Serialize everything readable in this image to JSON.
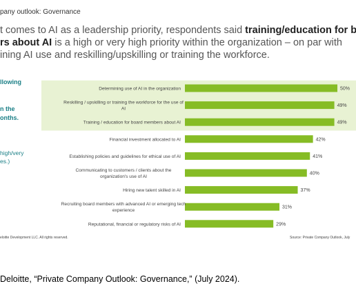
{
  "slide": {
    "breadcrumb": "pany outlook: Governance",
    "headline": {
      "line1_plain": "t comes to AI as a leadership priority, respondents said ",
      "line1_bold": "training/education for bo",
      "line2_bold": "rs about AI",
      "line2_plain": " is a high or very high priority within the organization – on par with",
      "line3": "ining AI use and reskilling/upskilling or training the workforce."
    },
    "side_text": [
      "llowing",
      "n the",
      "onths.",
      "high/very",
      "es.)"
    ],
    "footer_left": "eloitte Development LLC. All rights reserved.",
    "footer_right": "Source: Private Company Outlook, July"
  },
  "citation": "Deloitte, “Private Company Outlook: Governance,” (July 2024).",
  "colors": {
    "bar": "#86bc25",
    "highlight": "#e8f2d3",
    "teal": "#1a7f86",
    "label": "#444444"
  },
  "chart_data": {
    "type": "bar",
    "orientation": "horizontal",
    "categories": [
      [
        "Determining use of AI in the organization"
      ],
      [
        "Reskilling / upskilling or training the workforce for the use of",
        "AI"
      ],
      [
        "Training / education for board members about AI"
      ],
      [
        "Financial investment allocated to AI"
      ],
      [
        "Establishing policies and guidelines for ethical use of AI"
      ],
      [
        "Communicating to customers / clients about the",
        "organization's use of AI"
      ],
      [
        "Hiring new talent skilled in AI"
      ],
      [
        "Recruiting board members with advanced AI or emerging tech",
        "experience"
      ],
      [
        "Reputational, financial or regulatory risks of AI"
      ]
    ],
    "values": [
      50,
      49,
      49,
      42,
      41,
      40,
      37,
      31,
      29
    ],
    "value_labels": [
      "50%",
      "49%",
      "49%",
      "42%",
      "41%",
      "40%",
      "37%",
      "31%",
      "29%"
    ],
    "highlighted": [
      0,
      1,
      2
    ],
    "xlim": [
      0,
      55
    ],
    "grid": false
  }
}
